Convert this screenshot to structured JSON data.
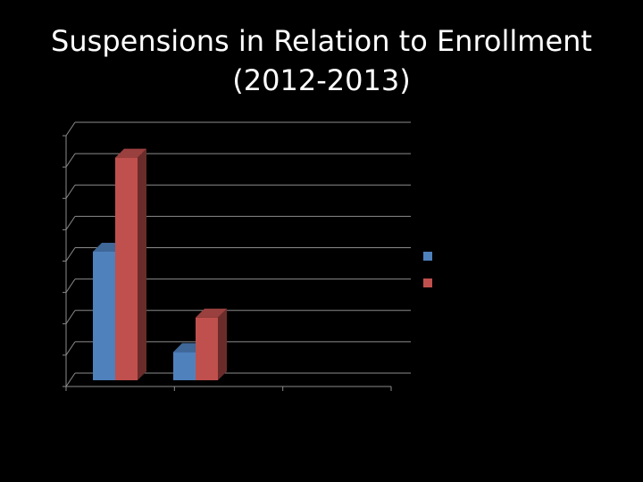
{
  "slide": {
    "title_line1": "Suspensions in Relation to Enrollment",
    "title_line2": "(2012-2013)"
  },
  "chart_data": {
    "type": "bar",
    "style": "3d-clustered-column",
    "categories": [
      "",
      "",
      ""
    ],
    "series": [
      {
        "color": "#4f81bd",
        "values": [
          4.1,
          0.9,
          0
        ]
      },
      {
        "color": "#c0504d",
        "values": [
          7.1,
          2.0,
          0
        ]
      }
    ],
    "ylim": [
      0,
      8
    ],
    "ytick_count": 8,
    "grid": true,
    "legend": "right",
    "title": "",
    "xlabel": "",
    "ylabel": ""
  }
}
